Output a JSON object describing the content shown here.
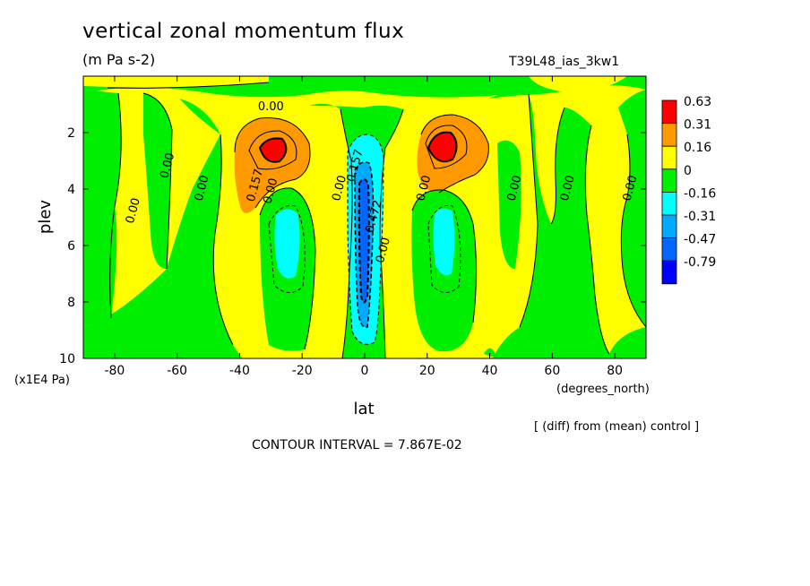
{
  "header": {
    "title": "vertical zonal momentum flux",
    "units": "(m Pa s-2)",
    "run_id": "T39L48_ias_3kw1"
  },
  "footer": {
    "diff_note": "[ (diff) from (mean) control ]",
    "contour_interval": "CONTOUR INTERVAL = 7.867E-02"
  },
  "chart_data": {
    "type": "contour",
    "xlabel": "lat",
    "x_unit": "(degrees_north)",
    "ylabel": "plev",
    "y_unit": "(x1E4 Pa)",
    "xlim": [
      -90,
      90
    ],
    "ylim": [
      10,
      0
    ],
    "x_ticks": [
      -80,
      -60,
      -40,
      -20,
      0,
      20,
      40,
      60,
      80
    ],
    "y_ticks": [
      2,
      4,
      6,
      8,
      10
    ],
    "grid": false,
    "legend_position": "right",
    "colorbar": [
      {
        "label": "0.63",
        "color": "#ff0000"
      },
      {
        "label": "0.31",
        "color": "#ff9900"
      },
      {
        "label": "0.16",
        "color": "#ffff00"
      },
      {
        "label": "0",
        "color": "#00ee00"
      },
      {
        "label": "-0.16",
        "color": "#00ffff"
      },
      {
        "label": "-0.31",
        "color": "#00aaff"
      },
      {
        "label": "-0.47",
        "color": "#0066ff"
      },
      {
        "label": "-0.79",
        "color": "#0000ff"
      }
    ],
    "contour_labels": [
      {
        "text": "0.00",
        "lat": -30,
        "plev": 1.2
      },
      {
        "text": "0.00",
        "lat": -73,
        "plev": 4.8
      },
      {
        "text": "0.00",
        "lat": -62,
        "plev": 3.2
      },
      {
        "text": "0.00",
        "lat": -51,
        "plev": 4.0
      },
      {
        "text": "0.157",
        "lat": -34,
        "plev": 3.9
      },
      {
        "text": "0.00",
        "lat": -29,
        "plev": 4.1
      },
      {
        "text": "0.00",
        "lat": -7,
        "plev": 4.0
      },
      {
        "text": "0.157",
        "lat": -2,
        "plev": 3.2
      },
      {
        "text": "0.472",
        "lat": 4,
        "plev": 5.0
      },
      {
        "text": "0.00",
        "lat": 7,
        "plev": 6.2
      },
      {
        "text": "0.00",
        "lat": 20,
        "plev": 4.0
      },
      {
        "text": "0.00",
        "lat": 49,
        "plev": 4.0
      },
      {
        "text": "0.00",
        "lat": 66,
        "plev": 4.0
      },
      {
        "text": "0.00",
        "lat": 86,
        "plev": 4.0
      }
    ]
  }
}
